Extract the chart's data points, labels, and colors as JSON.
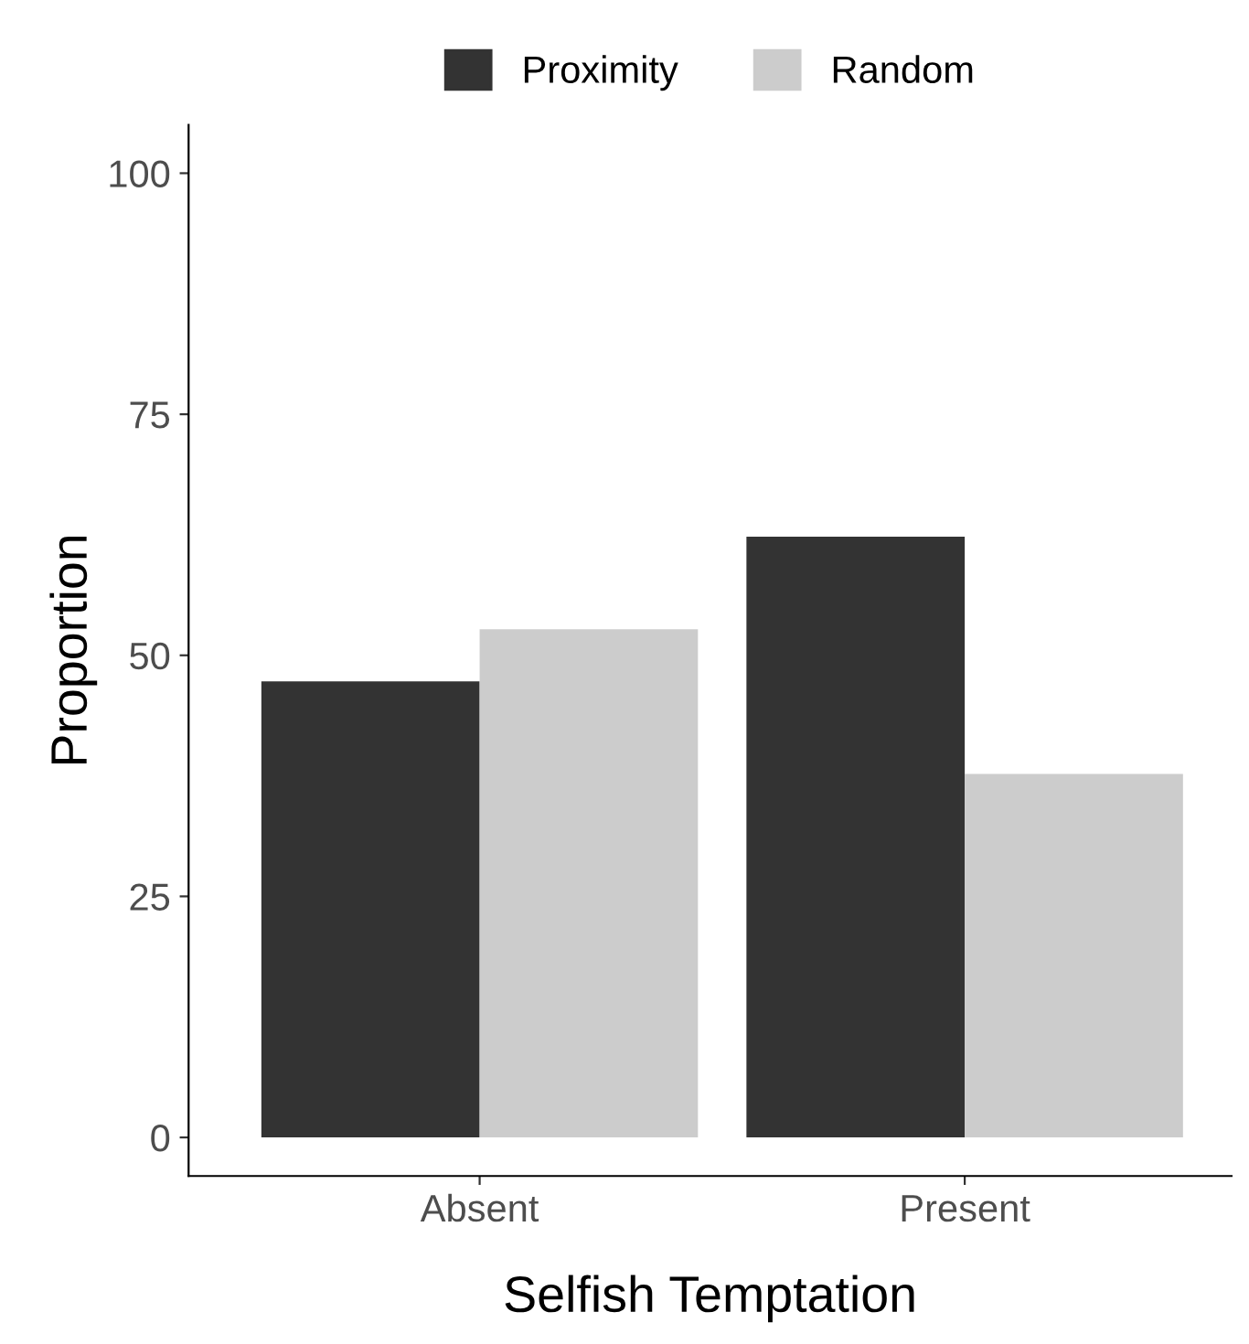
{
  "chart_data": {
    "type": "bar",
    "xlabel": "Selfish Temptation",
    "ylabel": "Proportion",
    "categories": [
      "Absent",
      "Present"
    ],
    "series": [
      {
        "name": "Proximity",
        "color": "#333333",
        "values": [
          47.3,
          62.3
        ]
      },
      {
        "name": "Random",
        "color": "#cccccc",
        "values": [
          52.7,
          37.7
        ]
      }
    ],
    "ylim": [
      -4,
      105
    ],
    "yticks": [
      0,
      25,
      50,
      75,
      100
    ],
    "grid": false,
    "legend": "top"
  }
}
